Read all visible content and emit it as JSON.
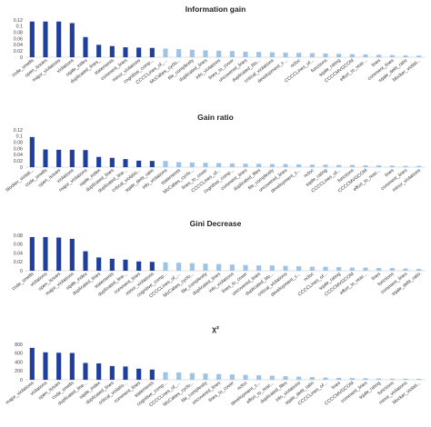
{
  "colors": {
    "highlight": "#1f3f9e",
    "muted": "#9dc3e6",
    "axis": "#bfbfbf"
  },
  "chart_data": [
    {
      "type": "bar",
      "title": "Information gain",
      "ylim": [
        0,
        0.12
      ],
      "yticks": [
        "0",
        "0.02",
        "0.04",
        "0.06",
        "0.08",
        "0.1",
        "0.12"
      ],
      "highlight_count": 10,
      "categories": [
        "code_smells",
        "open_issues",
        "major_violations",
        "violations",
        "sqale_index",
        "duplicated_lines_",
        "statements",
        "comment_lines",
        "minor_violations",
        "cognitive_comp...",
        "CCCCLines_of_...",
        "McCabes_cyclo...",
        "file_complexity",
        "duplicated_lines",
        "info_violations",
        "lines_to_cover",
        "uncovered_lines",
        "duplicated_blo...",
        "critical_violations",
        "development_c...",
        "ncloc",
        "CCCCLines_of...",
        "functions",
        "sqale_rating",
        "CCCCMVGCOM",
        "effort_to_reac...",
        "lines",
        "comment_lines",
        "sqale_debt_ratio",
        "blocker_violati..."
      ],
      "values": [
        0.115,
        0.115,
        0.115,
        0.11,
        0.065,
        0.04,
        0.036,
        0.032,
        0.031,
        0.03,
        0.028,
        0.026,
        0.024,
        0.022,
        0.021,
        0.02,
        0.018,
        0.017,
        0.016,
        0.015,
        0.014,
        0.013,
        0.012,
        0.011,
        0.01,
        0.009,
        0.008,
        0.007,
        0.006,
        0.005
      ]
    },
    {
      "type": "bar",
      "title": "Gain ratio",
      "ylim": [
        0,
        0.12
      ],
      "yticks": [
        "0",
        "0.02",
        "0.04",
        "0.06",
        "0.08",
        "0.1",
        "0.12"
      ],
      "highlight_count": 10,
      "categories": [
        "blocker_violati...",
        "code_smells",
        "open_issues",
        "violations",
        "major_violations",
        "sqale_index",
        "duplicated_lines",
        "duplicated_line...",
        "critical_violatio...",
        "sqale_debt_ratio",
        "info_violations",
        "statements",
        "McCabes_cyclo...",
        "lines_to_cover",
        "CCCCLines_of...",
        "cognitive_comp...",
        "comment_lines",
        "duplicated_files",
        "file_complexity",
        "uncovered_lines",
        "development_c...",
        "ncloc",
        "sqale_rating",
        "CCCCLines_of...",
        "functions",
        "CCCCMVGCOM",
        "effort_to_reac...",
        "lines",
        "comment_lines",
        "minor_violations"
      ],
      "values": [
        0.097,
        0.057,
        0.056,
        0.056,
        0.055,
        0.033,
        0.03,
        0.026,
        0.021,
        0.02,
        0.02,
        0.016,
        0.015,
        0.014,
        0.013,
        0.012,
        0.011,
        0.011,
        0.01,
        0.01,
        0.009,
        0.008,
        0.008,
        0.007,
        0.007,
        0.006,
        0.006,
        0.005,
        0.004,
        0.004
      ]
    },
    {
      "type": "bar",
      "title": "Gini Decrease",
      "ylim": [
        0,
        0.08
      ],
      "yticks": [
        "0",
        "0.02",
        "0.04",
        "0.06",
        "0.08"
      ],
      "highlight_count": 10,
      "categories": [
        "code_smells",
        "violations",
        "open_issues",
        "major_violations",
        "sqale_index",
        "duplicated_lines",
        "statements",
        "duplicated_line...",
        "comment_lines",
        "minor_violations",
        "cognitive_comp...",
        "CCCCLines_of_...",
        "McCabes_cyclo...",
        "file_complexity",
        "duplicated_lines",
        "info_violations",
        "lines_to_cover",
        "uncovered_lines",
        "duplicated_blo...",
        "critical_violations",
        "development_c...",
        "ncloc",
        "CCCCLines_of...",
        "sqale_rating",
        "CCCCMVGCOM",
        "effort_to_reac...",
        "lines",
        "functions",
        "comment_lines",
        "sqale_debt_ratio"
      ],
      "values": [
        0.076,
        0.076,
        0.075,
        0.072,
        0.044,
        0.03,
        0.027,
        0.025,
        0.021,
        0.02,
        0.019,
        0.018,
        0.017,
        0.016,
        0.015,
        0.014,
        0.013,
        0.012,
        0.012,
        0.011,
        0.01,
        0.009,
        0.009,
        0.008,
        0.007,
        0.007,
        0.006,
        0.006,
        0.005,
        0.004
      ]
    },
    {
      "type": "bar",
      "title": "χ²",
      "ylim": [
        0,
        800
      ],
      "yticks": [
        "0",
        "200",
        "400",
        "600",
        "800"
      ],
      "highlight_count": 10,
      "categories": [
        "major_violations",
        "violations",
        "open_issues",
        "code_smells",
        "duplicated_line...",
        "sqale_index",
        "duplicated_lines",
        "critical_violatio...",
        "comment_lines",
        "statements",
        "cognitive_comp...",
        "CCCCLines_of_...",
        "McCabes_cyclo...",
        "file_complexity",
        "uncovered_lines",
        "lines_to_cover",
        "ncloc",
        "development_c...",
        "effort_to_reac...",
        "duplicated_files",
        "info_violations",
        "sqale_debt_ratio",
        "CCCCLines_of...",
        "lines",
        "CCCCMVGCOM",
        "comment_lines",
        "sqale_rating",
        "functions",
        "minor_violations",
        "blocker_violati..."
      ],
      "values": [
        720,
        620,
        610,
        605,
        380,
        370,
        310,
        300,
        250,
        230,
        170,
        165,
        150,
        140,
        130,
        120,
        110,
        100,
        90,
        80,
        70,
        60,
        50,
        45,
        40,
        35,
        30,
        25,
        22,
        20
      ]
    }
  ]
}
